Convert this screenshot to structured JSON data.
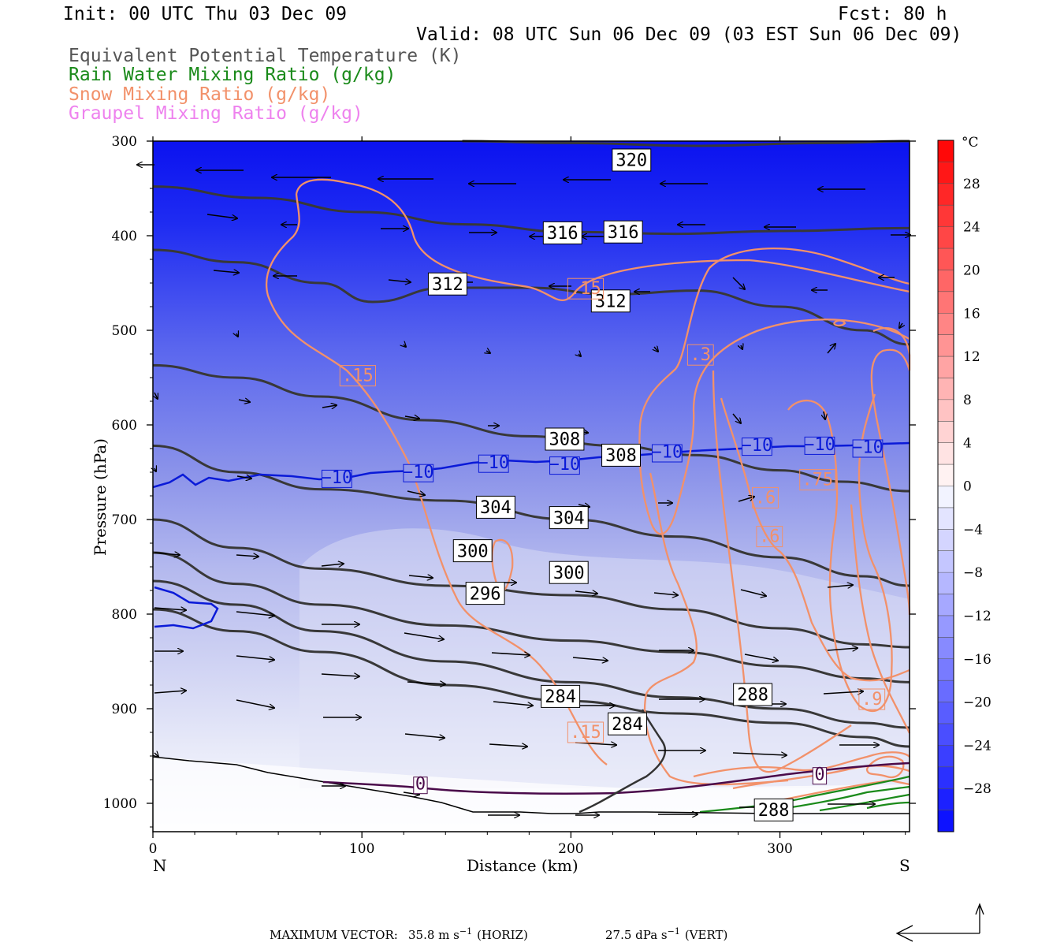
{
  "header": {
    "init": "Init: 00 UTC Thu 03 Dec 09",
    "fcst": "Fcst:   80 h",
    "valid": "Valid: 08 UTC Sun 06 Dec 09 (03 EST Sun 06 Dec 09)"
  },
  "legend": [
    {
      "label": "Equivalent Potential Temperature (K)",
      "color": "#555555"
    },
    {
      "label": "Rain Water Mixing Ratio (g/kg)",
      "color": "#1a8a1a"
    },
    {
      "label": "Snow Mixing Ratio (g/kg)",
      "color": "#f2916a"
    },
    {
      "label": "Graupel Mixing Ratio (g/kg)",
      "color": "#ee82ee"
    }
  ],
  "chart_data": {
    "type": "cross-section",
    "xlabel": "Distance (km)",
    "ylabel": "Pressure (hPa)",
    "x_ticks": [
      "0",
      "100",
      "200",
      "300"
    ],
    "x_tick_values": [
      0,
      100,
      200,
      300
    ],
    "xlim": [
      0,
      362
    ],
    "y_ticks": [
      "300",
      "400",
      "500",
      "600",
      "700",
      "800",
      "900",
      "1000"
    ],
    "y_tick_values": [
      300,
      400,
      500,
      600,
      700,
      800,
      900,
      1000
    ],
    "ylim": [
      300,
      1030
    ],
    "left_endpoint": "N",
    "right_endpoint": "S",
    "colorbar": {
      "unit": "°C",
      "labels": [
        "28",
        "24",
        "20",
        "16",
        "12",
        "8",
        "4",
        "0",
        "−4",
        "−8",
        "−12",
        "−16",
        "−20",
        "−24",
        "−28"
      ],
      "values": [
        28,
        24,
        20,
        16,
        12,
        8,
        4,
        0,
        -4,
        -8,
        -12,
        -16,
        -20,
        -24,
        -28
      ],
      "range": [
        -32,
        32
      ]
    },
    "theta_e_contours": [
      {
        "label": "320",
        "points": [
          [
            148,
            300
          ],
          [
            200,
            302
          ],
          [
            260,
            305
          ],
          [
            320,
            302
          ],
          [
            362,
            300
          ]
        ]
      },
      {
        "label": "316",
        "points": [
          [
            0,
            348
          ],
          [
            50,
            360
          ],
          [
            100,
            375
          ],
          [
            150,
            388
          ],
          [
            200,
            396
          ],
          [
            250,
            398
          ],
          [
            300,
            395
          ],
          [
            362,
            392
          ]
        ]
      },
      {
        "label": "312",
        "points": [
          [
            0,
            415
          ],
          [
            40,
            428
          ],
          [
            80,
            450
          ],
          [
            105,
            470
          ],
          [
            140,
            455
          ],
          [
            180,
            455
          ],
          [
            220,
            462
          ],
          [
            260,
            458
          ],
          [
            300,
            475
          ],
          [
            340,
            500
          ],
          [
            362,
            515
          ]
        ]
      },
      {
        "label": "308",
        "points": [
          [
            0,
            537
          ],
          [
            40,
            550
          ],
          [
            80,
            570
          ],
          [
            130,
            595
          ],
          [
            180,
            612
          ],
          [
            220,
            622
          ],
          [
            260,
            632
          ],
          [
            300,
            648
          ],
          [
            330,
            660
          ],
          [
            362,
            670
          ]
        ]
      },
      {
        "label": "304",
        "points": [
          [
            0,
            622
          ],
          [
            40,
            650
          ],
          [
            80,
            668
          ],
          [
            140,
            680
          ],
          [
            200,
            700
          ],
          [
            250,
            718
          ],
          [
            300,
            740
          ],
          [
            340,
            760
          ],
          [
            362,
            770
          ]
        ]
      },
      {
        "label": "300",
        "points": [
          [
            0,
            700
          ],
          [
            40,
            730
          ],
          [
            80,
            752
          ],
          [
            140,
            770
          ],
          [
            200,
            780
          ],
          [
            250,
            795
          ],
          [
            300,
            815
          ],
          [
            340,
            832
          ],
          [
            362,
            835
          ]
        ]
      },
      {
        "label": "296",
        "points": [
          [
            0,
            735
          ],
          [
            40,
            768
          ],
          [
            80,
            790
          ],
          [
            140,
            812
          ],
          [
            200,
            828
          ],
          [
            250,
            840
          ],
          [
            300,
            855
          ],
          [
            340,
            868
          ],
          [
            362,
            872
          ]
        ]
      },
      {
        "label": "",
        "points": [
          [
            0,
            765
          ],
          [
            40,
            790
          ],
          [
            80,
            818
          ],
          [
            140,
            850
          ],
          [
            200,
            872
          ],
          [
            250,
            888
          ],
          [
            300,
            900
          ],
          [
            340,
            915
          ],
          [
            362,
            920
          ]
        ]
      },
      {
        "label": "",
        "points": [
          [
            0,
            795
          ],
          [
            40,
            818
          ],
          [
            80,
            840
          ],
          [
            140,
            875
          ],
          [
            200,
            892
          ],
          [
            250,
            905
          ],
          [
            300,
            915
          ],
          [
            340,
            930
          ],
          [
            362,
            940
          ]
        ]
      }
    ],
    "theta_e_labels": [
      {
        "text": "320",
        "x": 229,
        "y": 320
      },
      {
        "text": "316",
        "x": 196,
        "y": 397
      },
      {
        "text": "316",
        "x": 225,
        "y": 396
      },
      {
        "text": "312",
        "x": 141,
        "y": 451
      },
      {
        "text": "312",
        "x": 219,
        "y": 469
      },
      {
        "text": "308",
        "x": 197,
        "y": 615
      },
      {
        "text": "308",
        "x": 224,
        "y": 632
      },
      {
        "text": "304",
        "x": 164,
        "y": 687
      },
      {
        "text": "304",
        "x": 199,
        "y": 698
      },
      {
        "text": "300",
        "x": 153,
        "y": 733
      },
      {
        "text": "300",
        "x": 199,
        "y": 756
      },
      {
        "text": "296",
        "x": 159,
        "y": 778
      },
      {
        "text": "284",
        "x": 195,
        "y": 887
      },
      {
        "text": "284",
        "x": 227,
        "y": 916
      },
      {
        "text": "288",
        "x": 287,
        "y": 885
      },
      {
        "text": "288",
        "x": 297,
        "y": 1007
      }
    ],
    "isotherm_labels": [
      {
        "text": "−10",
        "x": 88,
        "y": 657
      },
      {
        "text": "−10",
        "x": 127,
        "y": 651
      },
      {
        "text": "−10",
        "x": 163,
        "y": 641
      },
      {
        "text": "−10",
        "x": 197,
        "y": 643
      },
      {
        "text": "−10",
        "x": 246,
        "y": 630
      },
      {
        "text": "−10",
        "x": 289,
        "y": 623
      },
      {
        "text": "−10",
        "x": 319,
        "y": 622
      },
      {
        "text": "−10",
        "x": 342,
        "y": 625
      }
    ],
    "snow_labels": [
      {
        "text": ".15",
        "x": 98,
        "y": 548
      },
      {
        "text": ".15",
        "x": 207,
        "y": 456
      },
      {
        "text": ".3",
        "x": 262,
        "y": 526
      },
      {
        "text": ".6",
        "x": 293,
        "y": 677
      },
      {
        "text": ".75",
        "x": 318,
        "y": 658
      },
      {
        "text": ".6",
        "x": 295,
        "y": 718
      },
      {
        "text": ".15",
        "x": 207,
        "y": 925
      },
      {
        "text": ".9",
        "x": 344,
        "y": 890
      },
      {
        "text": "0",
        "x": 128,
        "y": 981
      },
      {
        "text": "0",
        "x": 319,
        "y": 971
      }
    ],
    "max_vector": {
      "label": "MAXIMUM VECTOR:",
      "horiz": "35.8 m s",
      "horiz_unit": "(HORIZ)",
      "vert": "27.5 dPa s",
      "vert_unit": "(VERT)",
      "exponent": "−1"
    }
  }
}
